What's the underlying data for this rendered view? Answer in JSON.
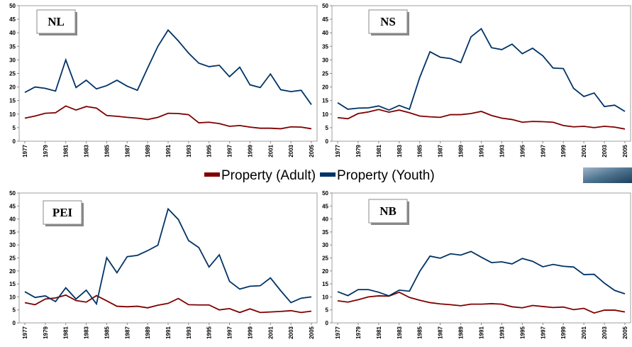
{
  "legend": [
    {
      "name": "Property (Adult)",
      "color": "#800000"
    },
    {
      "name": "Property (Youth)",
      "color": "#003366"
    }
  ],
  "chart_data": [
    {
      "type": "line",
      "title": "NL",
      "x": [
        1977,
        1978,
        1979,
        1980,
        1981,
        1982,
        1983,
        1984,
        1985,
        1986,
        1987,
        1988,
        1989,
        1990,
        1991,
        1992,
        1993,
        1994,
        1995,
        1996,
        1997,
        1998,
        1999,
        2000,
        2001,
        2002,
        2003,
        2004,
        2005
      ],
      "xlim": [
        1977,
        2005
      ],
      "xticks": [
        1977,
        1979,
        1981,
        1983,
        1985,
        1987,
        1989,
        1991,
        1993,
        1995,
        1997,
        1999,
        2001,
        2003,
        2005
      ],
      "ylim": [
        0,
        50
      ],
      "yticks": [
        0,
        5,
        10,
        15,
        20,
        25,
        30,
        35,
        40,
        45,
        50
      ],
      "series": [
        {
          "values": [
            8.5,
            9.3,
            10.3,
            10.5,
            13,
            11.5,
            12.8,
            12.2,
            9.5,
            9.2,
            8.8,
            8.5,
            8,
            8.8,
            10.3,
            10.2,
            9.8,
            6.8,
            7,
            6.5,
            5.5,
            5.8,
            5.2,
            4.8,
            4.8,
            4.6,
            5.3,
            5.2,
            4.6
          ]
        },
        {
          "values": [
            18,
            20,
            19.5,
            18.5,
            30,
            19.8,
            22.5,
            19.3,
            20.5,
            22.5,
            20.3,
            18.8,
            27,
            35,
            41,
            37,
            32.5,
            28.8,
            27.5,
            28,
            23.8,
            27.3,
            20.8,
            19.8,
            24.8,
            19,
            18.3,
            18.8,
            13.5
          ]
        }
      ]
    },
    {
      "type": "line",
      "title": "NS",
      "x": [
        1977,
        1978,
        1979,
        1980,
        1981,
        1982,
        1983,
        1984,
        1985,
        1986,
        1987,
        1988,
        1989,
        1990,
        1991,
        1992,
        1993,
        1994,
        1995,
        1996,
        1997,
        1998,
        1999,
        2000,
        2001,
        2002,
        2003,
        2004,
        2005
      ],
      "xlim": [
        1977,
        2005
      ],
      "xticks": [
        1977,
        1979,
        1981,
        1983,
        1985,
        1987,
        1989,
        1991,
        1993,
        1995,
        1997,
        1999,
        2001,
        2003,
        2005
      ],
      "ylim": [
        0,
        50
      ],
      "yticks": [
        0,
        5,
        10,
        15,
        20,
        25,
        30,
        35,
        40,
        45,
        50
      ],
      "series": [
        {
          "values": [
            8.7,
            8.3,
            10.2,
            10.8,
            11.7,
            10.7,
            11.5,
            10.5,
            9.3,
            9,
            8.8,
            9.8,
            9.8,
            10.2,
            11,
            9.5,
            8.5,
            8,
            7,
            7.3,
            7.2,
            7,
            5.8,
            5.3,
            5.5,
            5,
            5.5,
            5.2,
            4.5
          ]
        },
        {
          "values": [
            14.2,
            11.8,
            12.2,
            12.3,
            13,
            11.5,
            13.2,
            11.8,
            23.5,
            33,
            31,
            30.5,
            29,
            38.5,
            41.5,
            34.5,
            33.8,
            35.8,
            32.3,
            34.3,
            31.5,
            27,
            26.8,
            19.5,
            16.5,
            17.8,
            12.8,
            13.3,
            11
          ]
        }
      ]
    },
    {
      "type": "line",
      "title": "PEI",
      "x": [
        1977,
        1978,
        1979,
        1980,
        1981,
        1982,
        1983,
        1984,
        1985,
        1986,
        1987,
        1988,
        1989,
        1990,
        1991,
        1992,
        1993,
        1994,
        1995,
        1996,
        1997,
        1998,
        1999,
        2000,
        2001,
        2002,
        2003,
        2004,
        2005
      ],
      "xlim": [
        1977,
        2005
      ],
      "xticks": [
        1977,
        1979,
        1981,
        1983,
        1985,
        1987,
        1989,
        1991,
        1993,
        1995,
        1997,
        1999,
        2001,
        2003,
        2005
      ],
      "ylim": [
        0,
        50
      ],
      "yticks": [
        0,
        5,
        10,
        15,
        20,
        25,
        30,
        35,
        40,
        45,
        50
      ],
      "series": [
        {
          "values": [
            7.8,
            7,
            9.2,
            9.6,
            10.7,
            8.6,
            8,
            10.5,
            8.5,
            6.4,
            6.2,
            6.4,
            5.8,
            6.8,
            7.5,
            9.4,
            7,
            6.9,
            6.9,
            5,
            5.5,
            4,
            5.4,
            4,
            4.2,
            4.4,
            4.7,
            4,
            4.5
          ]
        },
        {
          "values": [
            12,
            9.8,
            10.4,
            8.2,
            13.5,
            9.2,
            12.6,
            7.3,
            25.1,
            19.3,
            25.5,
            26,
            27.8,
            29.9,
            43.9,
            39.8,
            31.7,
            29,
            21.5,
            26.2,
            16,
            13,
            14.1,
            14.3,
            17.3,
            12.4,
            7.8,
            9.5,
            10
          ]
        }
      ]
    },
    {
      "type": "line",
      "title": "NB",
      "x": [
        1977,
        1978,
        1979,
        1980,
        1981,
        1982,
        1983,
        1984,
        1985,
        1986,
        1987,
        1988,
        1989,
        1990,
        1991,
        1992,
        1993,
        1994,
        1995,
        1996,
        1997,
        1998,
        1999,
        2000,
        2001,
        2002,
        2003,
        2004,
        2005
      ],
      "xlim": [
        1977,
        2005
      ],
      "xticks": [
        1977,
        1979,
        1981,
        1983,
        1985,
        1987,
        1989,
        1991,
        1993,
        1995,
        1997,
        1999,
        2001,
        2003,
        2005
      ],
      "ylim": [
        0,
        50
      ],
      "yticks": [
        0,
        5,
        10,
        15,
        20,
        25,
        30,
        35,
        40,
        45,
        50
      ],
      "series": [
        {
          "values": [
            8.5,
            8,
            8.9,
            10,
            10.4,
            10.3,
            11.8,
            9.8,
            8.7,
            7.8,
            7.3,
            7,
            6.6,
            7.2,
            7.2,
            7.4,
            7.2,
            6.2,
            5.8,
            6.7,
            6.3,
            5.9,
            6.1,
            5.1,
            5.6,
            3.8,
            4.9,
            4.9,
            4.2
          ]
        },
        {
          "values": [
            12,
            10.5,
            12.8,
            12.8,
            11.8,
            10.4,
            12.6,
            12.2,
            19.8,
            25.7,
            24.9,
            26.6,
            26.1,
            27.5,
            25.3,
            23.2,
            23.5,
            22.7,
            24.8,
            23.7,
            21.6,
            22.5,
            21.8,
            21.5,
            18.6,
            18.7,
            15.3,
            12.5,
            11.2
          ]
        }
      ]
    }
  ]
}
